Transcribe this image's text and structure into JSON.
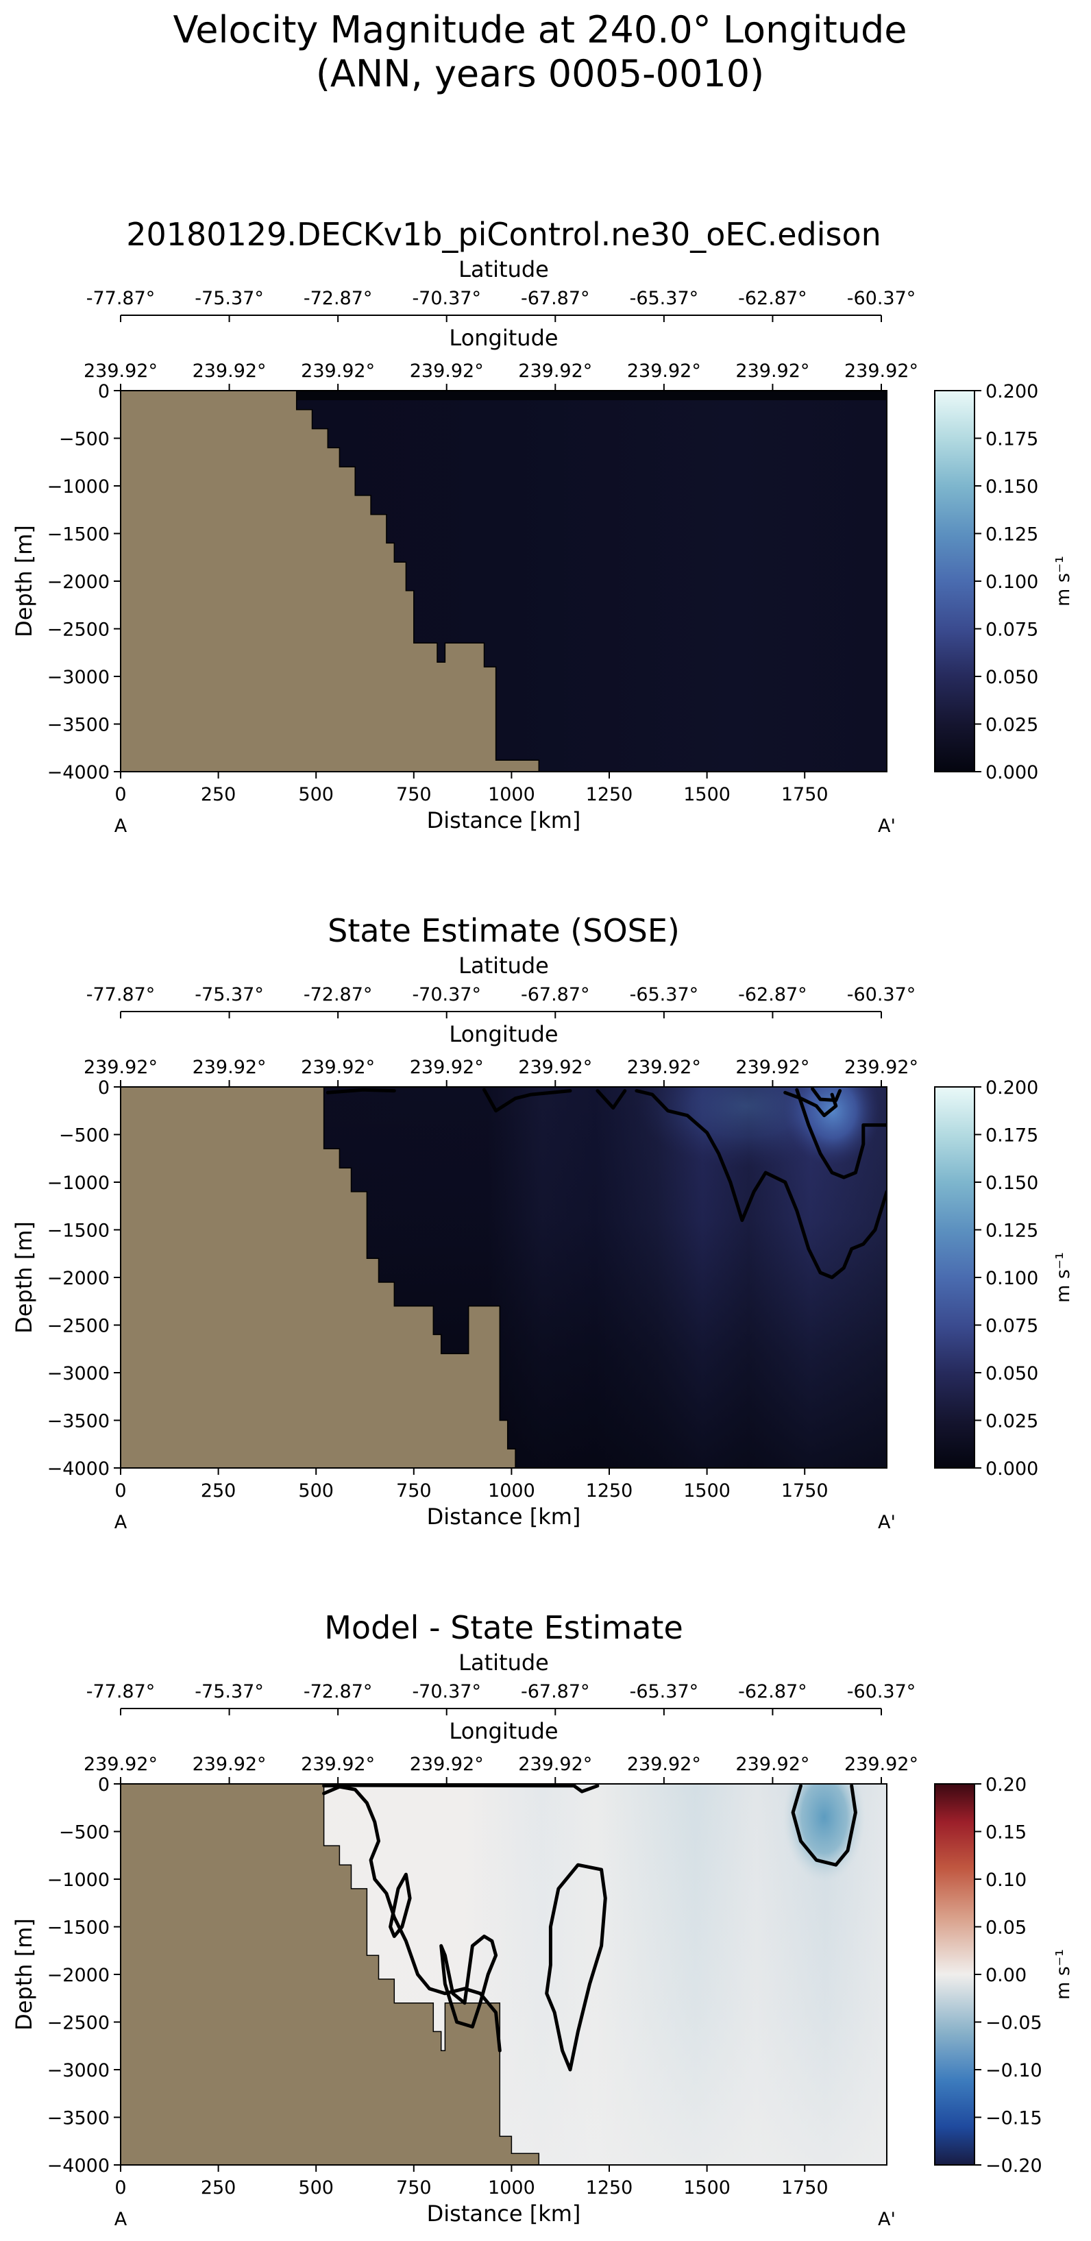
{
  "figure": {
    "title_line1": "Velocity Magnitude at 240.0° Longitude",
    "title_line2": "(ANN, years 0005-0010)"
  },
  "colors": {
    "land": "#8f7f63",
    "contour": "#000000",
    "background": "#ffffff"
  },
  "chart_data": [
    {
      "type": "heatmap",
      "title": "20180129.DECKv1b_piControl.ne30_oEC.edison",
      "xlabel": "Distance [km]",
      "ylabel": "Depth [m]",
      "x_ticks": [
        "0",
        "250",
        "500",
        "750",
        "1000",
        "1250",
        "1500",
        "1750"
      ],
      "y_ticks": [
        "0",
        "−500",
        "−1000",
        "−1500",
        "−2000",
        "−2500",
        "−3000",
        "−3500",
        "−4000"
      ],
      "xlim": [
        0,
        1960
      ],
      "ylim": [
        -4000,
        0
      ],
      "lat_label": "Latitude",
      "lat_ticks": [
        "-77.87°",
        "-75.37°",
        "-72.87°",
        "-70.37°",
        "-67.87°",
        "-65.37°",
        "-62.87°",
        "-60.37°"
      ],
      "lon_label": "Longitude",
      "lon_ticks": [
        "239.92°",
        "239.92°",
        "239.92°",
        "239.92°",
        "239.92°",
        "239.92°",
        "239.92°",
        "239.92°"
      ],
      "start_label": "A",
      "end_label": "A'",
      "colorbar": {
        "label": "m s⁻¹",
        "range": [
          0.0,
          0.2
        ],
        "ticks": [
          "0.200",
          "0.175",
          "0.150",
          "0.125",
          "0.100",
          "0.075",
          "0.050",
          "0.025",
          "0.000"
        ],
        "colormap": "ice"
      },
      "bathymetry": [
        [
          0,
          0
        ],
        [
          450,
          0
        ],
        [
          450,
          -200
        ],
        [
          490,
          -200
        ],
        [
          490,
          -400
        ],
        [
          530,
          -400
        ],
        [
          530,
          -600
        ],
        [
          560,
          -600
        ],
        [
          560,
          -800
        ],
        [
          600,
          -800
        ],
        [
          600,
          -1100
        ],
        [
          640,
          -1100
        ],
        [
          640,
          -1300
        ],
        [
          680,
          -1300
        ],
        [
          680,
          -1600
        ],
        [
          700,
          -1600
        ],
        [
          700,
          -1800
        ],
        [
          730,
          -1800
        ],
        [
          730,
          -2100
        ],
        [
          750,
          -2100
        ],
        [
          750,
          -2650
        ],
        [
          810,
          -2650
        ],
        [
          810,
          -2850
        ],
        [
          830,
          -2850
        ],
        [
          830,
          -2650
        ],
        [
          930,
          -2650
        ],
        [
          930,
          -2900
        ],
        [
          960,
          -2900
        ],
        [
          960,
          -3880
        ],
        [
          1070,
          -3880
        ],
        [
          1070,
          -4000
        ],
        [
          0,
          -4000
        ]
      ],
      "field_description": "near-uniform weak velocity, about 0.005 m/s everywhere",
      "contours": []
    },
    {
      "type": "heatmap",
      "title": "State Estimate (SOSE)",
      "xlabel": "Distance [km]",
      "ylabel": "Depth [m]",
      "x_ticks": [
        "0",
        "250",
        "500",
        "750",
        "1000",
        "1250",
        "1500",
        "1750"
      ],
      "y_ticks": [
        "0",
        "−500",
        "−1000",
        "−1500",
        "−2000",
        "−2500",
        "−3000",
        "−3500",
        "−4000"
      ],
      "xlim": [
        0,
        1960
      ],
      "ylim": [
        -4000,
        0
      ],
      "lat_label": "Latitude",
      "lat_ticks": [
        "-77.87°",
        "-75.37°",
        "-72.87°",
        "-70.37°",
        "-67.87°",
        "-65.37°",
        "-62.87°",
        "-60.37°"
      ],
      "lon_label": "Longitude",
      "lon_ticks": [
        "239.92°",
        "239.92°",
        "239.92°",
        "239.92°",
        "239.92°",
        "239.92°",
        "239.92°",
        "239.92°"
      ],
      "start_label": "A",
      "end_label": "A'",
      "colorbar": {
        "label": "m s⁻¹",
        "range": [
          0.0,
          0.2
        ],
        "ticks": [
          "0.200",
          "0.175",
          "0.150",
          "0.125",
          "0.100",
          "0.075",
          "0.050",
          "0.025",
          "0.000"
        ],
        "colormap": "ice"
      },
      "bathymetry": [
        [
          0,
          0
        ],
        [
          520,
          0
        ],
        [
          520,
          -650
        ],
        [
          560,
          -650
        ],
        [
          560,
          -850
        ],
        [
          590,
          -850
        ],
        [
          590,
          -1100
        ],
        [
          630,
          -1100
        ],
        [
          630,
          -1800
        ],
        [
          660,
          -1800
        ],
        [
          660,
          -2050
        ],
        [
          700,
          -2050
        ],
        [
          700,
          -2300
        ],
        [
          800,
          -2300
        ],
        [
          800,
          -2600
        ],
        [
          820,
          -2600
        ],
        [
          820,
          -2800
        ],
        [
          890,
          -2800
        ],
        [
          890,
          -2300
        ],
        [
          970,
          -2300
        ],
        [
          970,
          -3500
        ],
        [
          990,
          -3500
        ],
        [
          990,
          -3800
        ],
        [
          1010,
          -3800
        ],
        [
          1010,
          -4000
        ],
        [
          0,
          -4000
        ]
      ],
      "field_description": "weak flow at depth; stronger flow (0.05-0.12 m/s) in upper ocean east of 1500 km",
      "contours": [
        [
          [
            530,
            -60
          ],
          [
            620,
            -30
          ],
          [
            700,
            -40
          ]
        ],
        [
          [
            930,
            -30
          ],
          [
            960,
            -250
          ],
          [
            1010,
            -120
          ],
          [
            1050,
            -80
          ],
          [
            1150,
            -40
          ]
        ],
        [
          [
            1220,
            -40
          ],
          [
            1260,
            -220
          ],
          [
            1290,
            -40
          ]
        ],
        [
          [
            1320,
            -40
          ],
          [
            1360,
            -80
          ],
          [
            1400,
            -250
          ],
          [
            1450,
            -300
          ],
          [
            1500,
            -480
          ],
          [
            1530,
            -700
          ],
          [
            1560,
            -1000
          ],
          [
            1590,
            -1400
          ],
          [
            1620,
            -1100
          ],
          [
            1650,
            -900
          ],
          [
            1700,
            -1000
          ],
          [
            1730,
            -1300
          ],
          [
            1760,
            -1700
          ],
          [
            1790,
            -1950
          ],
          [
            1820,
            -2000
          ],
          [
            1850,
            -1900
          ],
          [
            1870,
            -1700
          ],
          [
            1900,
            -1650
          ],
          [
            1930,
            -1500
          ],
          [
            1960,
            -1100
          ]
        ],
        [
          [
            1730,
            -30
          ],
          [
            1760,
            -400
          ],
          [
            1790,
            -700
          ],
          [
            1820,
            -900
          ],
          [
            1850,
            -950
          ],
          [
            1880,
            -900
          ],
          [
            1900,
            -600
          ],
          [
            1900,
            -400
          ],
          [
            1960,
            -400
          ]
        ],
        [
          [
            1700,
            -60
          ],
          [
            1740,
            -120
          ],
          [
            1780,
            -200
          ],
          [
            1800,
            -300
          ],
          [
            1830,
            -200
          ],
          [
            1820,
            -80
          ]
        ],
        [
          [
            1770,
            -20
          ],
          [
            1790,
            -130
          ],
          [
            1830,
            -140
          ],
          [
            1840,
            -40
          ]
        ]
      ]
    },
    {
      "type": "heatmap",
      "title": "Model - State Estimate",
      "xlabel": "Distance [km]",
      "ylabel": "Depth [m]",
      "x_ticks": [
        "0",
        "250",
        "500",
        "750",
        "1000",
        "1250",
        "1500",
        "1750"
      ],
      "y_ticks": [
        "0",
        "−500",
        "−1000",
        "−1500",
        "−2000",
        "−2500",
        "−3000",
        "−3500",
        "−4000"
      ],
      "xlim": [
        0,
        1960
      ],
      "ylim": [
        -4000,
        0
      ],
      "lat_label": "Latitude",
      "lat_ticks": [
        "-77.87°",
        "-75.37°",
        "-72.87°",
        "-70.37°",
        "-67.87°",
        "-65.37°",
        "-62.87°",
        "-60.37°"
      ],
      "lon_label": "Longitude",
      "lon_ticks": [
        "239.92°",
        "239.92°",
        "239.92°",
        "239.92°",
        "239.92°",
        "239.92°",
        "239.92°",
        "239.92°"
      ],
      "start_label": "A",
      "end_label": "A'",
      "colorbar": {
        "label": "m s⁻¹",
        "range": [
          -0.2,
          0.2
        ],
        "ticks": [
          "0.20",
          "0.15",
          "0.10",
          "0.05",
          "0.00",
          "−0.05",
          "−0.10",
          "−0.15",
          "−0.20"
        ],
        "colormap": "balance"
      },
      "bathymetry": [
        [
          0,
          0
        ],
        [
          520,
          0
        ],
        [
          520,
          -650
        ],
        [
          560,
          -650
        ],
        [
          560,
          -850
        ],
        [
          590,
          -850
        ],
        [
          590,
          -1100
        ],
        [
          630,
          -1100
        ],
        [
          630,
          -1800
        ],
        [
          660,
          -1800
        ],
        [
          660,
          -2050
        ],
        [
          700,
          -2050
        ],
        [
          700,
          -2300
        ],
        [
          800,
          -2300
        ],
        [
          800,
          -2600
        ],
        [
          820,
          -2600
        ],
        [
          820,
          -2800
        ],
        [
          830,
          -2800
        ],
        [
          830,
          -2300
        ],
        [
          970,
          -2300
        ],
        [
          970,
          -3700
        ],
        [
          1000,
          -3700
        ],
        [
          1000,
          -3880
        ],
        [
          1070,
          -3880
        ],
        [
          1070,
          -4000
        ],
        [
          0,
          -4000
        ]
      ],
      "field_description": "differences near zero; negative (blue) anomaly near 1800 km in upper 800 m",
      "contours": [
        [
          [
            520,
            -100
          ],
          [
            560,
            -30
          ],
          [
            600,
            -60
          ],
          [
            630,
            -200
          ],
          [
            650,
            -400
          ],
          [
            660,
            -600
          ],
          [
            640,
            -800
          ],
          [
            650,
            -1000
          ],
          [
            680,
            -1150
          ],
          [
            700,
            -1400
          ],
          [
            730,
            -1650
          ],
          [
            760,
            -2000
          ],
          [
            790,
            -2150
          ],
          [
            830,
            -2200
          ],
          [
            880,
            -2150
          ],
          [
            920,
            -2200
          ],
          [
            960,
            -2400
          ],
          [
            970,
            -2800
          ]
        ],
        [
          [
            520,
            -20
          ],
          [
            600,
            -15
          ],
          [
            1160,
            -20
          ],
          [
            1180,
            -80
          ],
          [
            1220,
            -20
          ]
        ],
        [
          [
            690,
            -1500
          ],
          [
            710,
            -1100
          ],
          [
            730,
            -950
          ],
          [
            740,
            -1200
          ],
          [
            720,
            -1500
          ],
          [
            700,
            -1600
          ],
          [
            690,
            -1500
          ]
        ],
        [
          [
            820,
            -1700
          ],
          [
            830,
            -2100
          ],
          [
            860,
            -2500
          ],
          [
            900,
            -2550
          ],
          [
            920,
            -2300
          ],
          [
            940,
            -2000
          ],
          [
            960,
            -1800
          ],
          [
            950,
            -1650
          ],
          [
            930,
            -1600
          ],
          [
            900,
            -1700
          ],
          [
            880,
            -2300
          ],
          [
            850,
            -2200
          ],
          [
            830,
            -1800
          ],
          [
            820,
            -1700
          ]
        ],
        [
          [
            1100,
            -1500
          ],
          [
            1120,
            -1100
          ],
          [
            1170,
            -850
          ],
          [
            1230,
            -900
          ],
          [
            1240,
            -1200
          ],
          [
            1230,
            -1700
          ],
          [
            1200,
            -2100
          ],
          [
            1170,
            -2600
          ],
          [
            1150,
            -3000
          ],
          [
            1130,
            -2800
          ],
          [
            1110,
            -2400
          ],
          [
            1090,
            -2200
          ],
          [
            1100,
            -1900
          ],
          [
            1100,
            -1500
          ]
        ],
        [
          [
            1740,
            -20
          ],
          [
            1720,
            -300
          ],
          [
            1740,
            -600
          ],
          [
            1780,
            -800
          ],
          [
            1830,
            -850
          ],
          [
            1860,
            -700
          ],
          [
            1880,
            -300
          ],
          [
            1870,
            -20
          ]
        ]
      ]
    }
  ]
}
